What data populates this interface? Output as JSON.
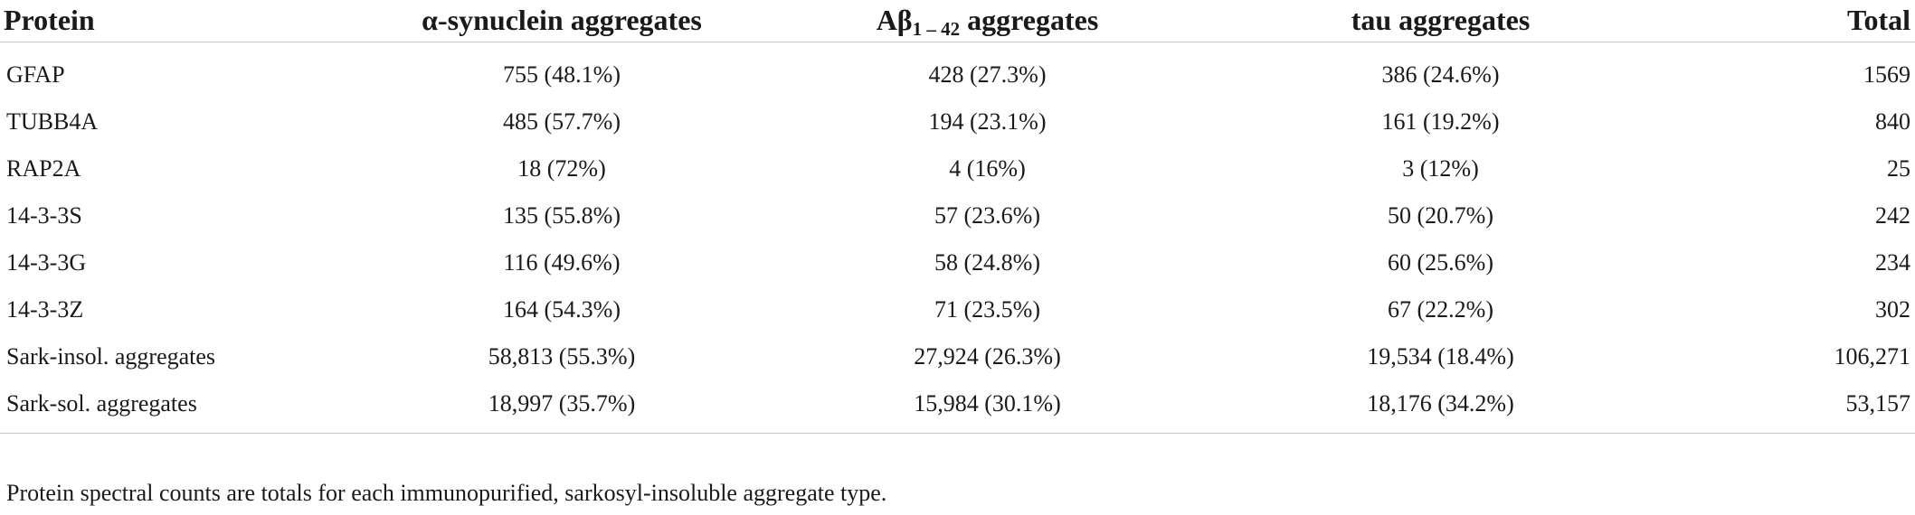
{
  "table": {
    "headers": {
      "protein": "Protein",
      "alpha_syn": "α-synuclein aggregates",
      "abeta_prefix": "Aβ",
      "abeta_sub": "1 – 42",
      "abeta_suffix": " aggregates",
      "tau": "tau aggregates",
      "total": "Total"
    },
    "rows": [
      {
        "protein": "GFAP",
        "alpha_syn": "755 (48.1%)",
        "abeta": "428 (27.3%)",
        "tau": "386 (24.6%)",
        "total": "1569"
      },
      {
        "protein": "TUBB4A",
        "alpha_syn": "485 (57.7%)",
        "abeta": "194 (23.1%)",
        "tau": "161 (19.2%)",
        "total": "840"
      },
      {
        "protein": "RAP2A",
        "alpha_syn": "18 (72%)",
        "abeta": "4 (16%)",
        "tau": "3 (12%)",
        "total": "25"
      },
      {
        "protein": "14-3-3S",
        "alpha_syn": "135 (55.8%)",
        "abeta": "57 (23.6%)",
        "tau": "50 (20.7%)",
        "total": "242"
      },
      {
        "protein": "14-3-3G",
        "alpha_syn": "116 (49.6%)",
        "abeta": "58 (24.8%)",
        "tau": "60 (25.6%)",
        "total": "234"
      },
      {
        "protein": "14-3-3Z",
        "alpha_syn": "164 (54.3%)",
        "abeta": "71 (23.5%)",
        "tau": "67 (22.2%)",
        "total": "302"
      },
      {
        "protein": "Sark-insol. aggregates",
        "alpha_syn": "58,813 (55.3%)",
        "abeta": "27,924 (26.3%)",
        "tau": "19,534 (18.4%)",
        "total": "106,271"
      },
      {
        "protein": "Sark-sol. aggregates",
        "alpha_syn": "18,997 (35.7%)",
        "abeta": "15,984 (30.1%)",
        "tau": "18,176 (34.2%)",
        "total": "53,157"
      }
    ]
  },
  "footnote": "Protein spectral counts are totals for each immunopurified, sarkosyl-insoluble aggregate type."
}
